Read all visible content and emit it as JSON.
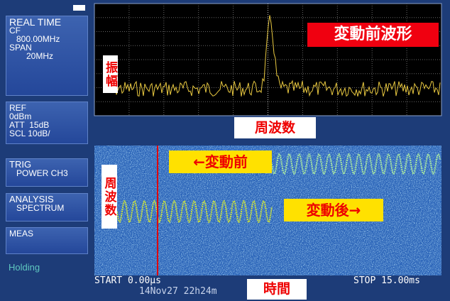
{
  "left_panel": {
    "measurement": [
      "REAL TIME",
      "CF",
      "800.00MHz",
      "SPAN",
      "20MHz"
    ],
    "reference": [
      "REF",
      "0dBm",
      "ATT  15dB",
      "SCL 10dB/"
    ],
    "trigger": [
      "TRIG",
      "POWER CH3"
    ],
    "analysis": [
      "ANALYSIS",
      "SPECTRUM"
    ],
    "meas": "MEAS",
    "status": "Holding"
  },
  "spectrum": {
    "annotation": "変動前波形",
    "y_label": "振幅",
    "x_label": "周波数"
  },
  "spectrogram": {
    "before_label": "←変動前",
    "after_label": "変動後→",
    "y_label": "周波数",
    "start": "START 0.00μs",
    "timestamp": "14Nov27 22h24m",
    "stop": "STOP 15.00ms",
    "x_label": "時間"
  }
}
